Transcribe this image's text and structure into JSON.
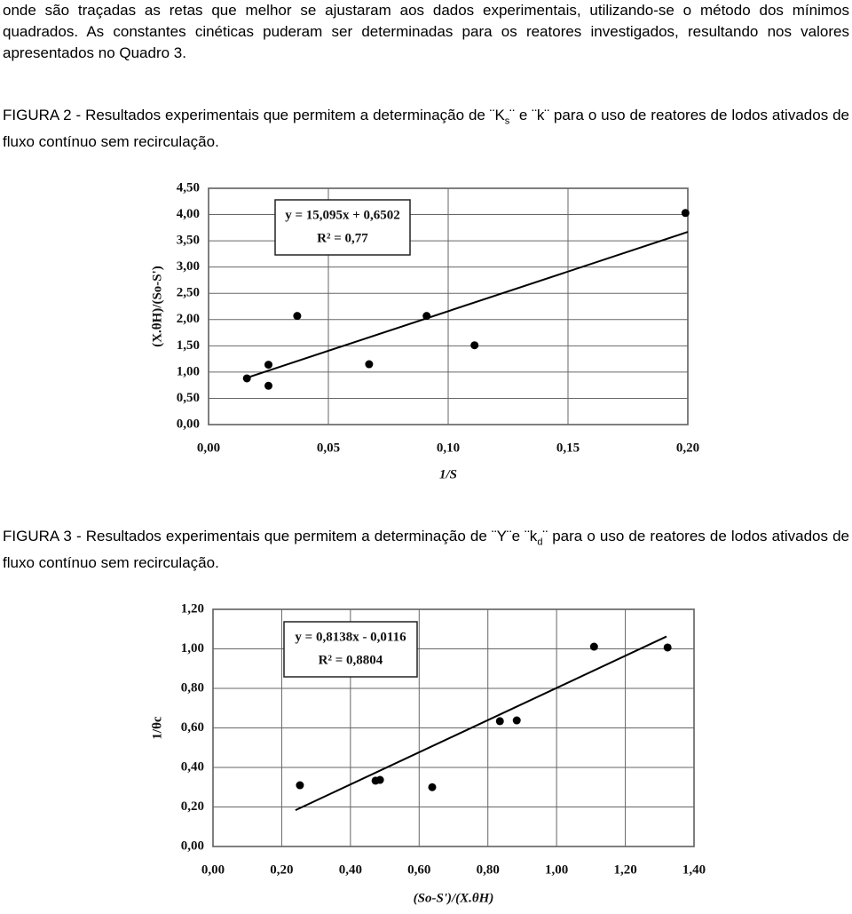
{
  "document": {
    "paragraph": "onde são traçadas as retas que melhor se ajustaram aos dados experimentais, utilizando-se o método dos mínimos quadrados. As constantes cinéticas puderam ser determinadas para os reatores investigados, resultando nos valores apresentados no Quadro 3.",
    "captions": [
      {
        "text": "FIGURA 2 - Resultados experimentais que permitem a determinação de ¨K",
        "sub": "s",
        "rest": "¨ e ¨k¨ para o uso de reatores de lodos ativados de fluxo contínuo sem recirculação."
      },
      {
        "text": "FIGURA 3 - Resultados experimentais que permitem a determinação de ¨Y¨e ¨k",
        "sub": "d",
        "rest": "¨ para o uso de reatores de lodos ativados de fluxo contínuo sem recirculação."
      }
    ]
  },
  "chart_data": [
    {
      "type": "scatter",
      "x_label": "1/S",
      "y_label": "(X.θH)/(So-S')",
      "color": "#000000",
      "grid": true,
      "x": [
        0.016,
        0.025,
        0.025,
        0.037,
        0.067,
        0.091,
        0.111,
        0.199
      ],
      "values": [
        0.88,
        1.14,
        0.74,
        2.07,
        1.15,
        2.07,
        1.51,
        4.03
      ],
      "xlim": [
        0,
        0.2
      ],
      "xticks": [
        {
          "value": 0,
          "label": "0,00"
        },
        {
          "value": 0.05,
          "label": "0,05"
        },
        {
          "value": 0.1,
          "label": "0,10"
        },
        {
          "value": 0.15,
          "label": "0,15"
        },
        {
          "value": 0.2,
          "label": "0,20"
        }
      ],
      "ylim": [
        0,
        4.5
      ],
      "yticks": [
        {
          "value": 0,
          "label": "0,00"
        },
        {
          "value": 0.5,
          "label": "0,50"
        },
        {
          "value": 1,
          "label": "1,00"
        },
        {
          "value": 1.5,
          "label": "1,50"
        },
        {
          "value": 2,
          "label": "2,00"
        },
        {
          "value": 2.5,
          "label": "2,50"
        },
        {
          "value": 3,
          "label": "3,00"
        },
        {
          "value": 3.5,
          "label": "3,50"
        },
        {
          "value": 4,
          "label": "4,00"
        },
        {
          "value": 4.5,
          "label": "4,50"
        }
      ],
      "trendline": {
        "equation": "y = 15,095x + 0,6502",
        "r2": "R² = 0,77",
        "slope": 15.095,
        "intercept": 0.6502,
        "x": [
          0.015,
          0.2
        ]
      }
    },
    {
      "type": "scatter",
      "x_label": "(So-S')/(X.θH)",
      "y_label": "1/θc",
      "color": "#000000",
      "grid": true,
      "x": [
        0.253,
        0.473,
        0.486,
        0.638,
        0.835,
        0.884,
        1.109,
        1.323
      ],
      "values": [
        0.31,
        0.333,
        0.337,
        0.3,
        0.634,
        0.638,
        1.011,
        1.007
      ],
      "xlim": [
        0,
        1.4
      ],
      "xticks": [
        {
          "value": 0,
          "label": "0,00"
        },
        {
          "value": 0.2,
          "label": "0,20"
        },
        {
          "value": 0.4,
          "label": "0,40"
        },
        {
          "value": 0.6,
          "label": "0,60"
        },
        {
          "value": 0.8,
          "label": "0,80"
        },
        {
          "value": 1,
          "label": "1,00"
        },
        {
          "value": 1.2,
          "label": "1,20"
        },
        {
          "value": 1.4,
          "label": "1,40"
        }
      ],
      "ylim": [
        0,
        1.2
      ],
      "yticks": [
        {
          "value": 0,
          "label": "0,00"
        },
        {
          "value": 0.2,
          "label": "0,20"
        },
        {
          "value": 0.4,
          "label": "0,40"
        },
        {
          "value": 0.6,
          "label": "0,60"
        },
        {
          "value": 0.8,
          "label": "0,80"
        },
        {
          "value": 1,
          "label": "1,00"
        },
        {
          "value": 1.2,
          "label": "1,20"
        }
      ],
      "trendline": {
        "equation": "y = 0,8138x - 0,0116",
        "r2": "R² = 0,8804",
        "slope": 0.8138,
        "intercept": -0.0116,
        "x": [
          0.24,
          1.32
        ]
      }
    }
  ]
}
